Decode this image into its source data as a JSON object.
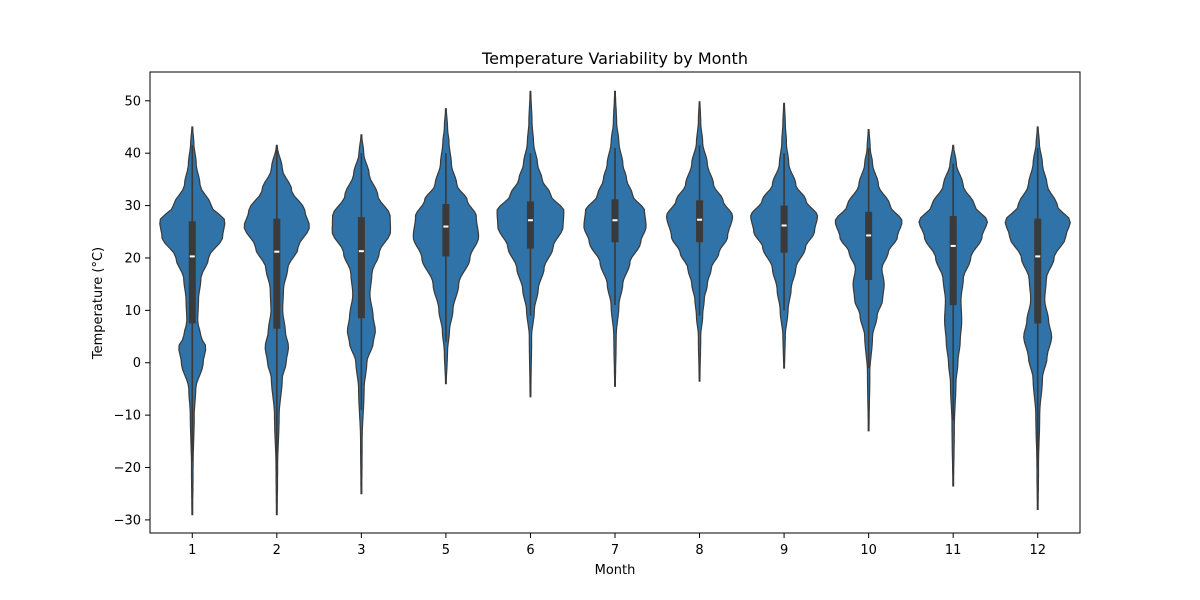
{
  "chart_data": {
    "type": "violin",
    "title": "Temperature Variability by Month",
    "xlabel": "Month",
    "ylabel": "Temperature (°C)",
    "ylim": [
      -32.5,
      55.5
    ],
    "yticks": [
      -30,
      -20,
      -10,
      0,
      10,
      20,
      30,
      40,
      50
    ],
    "grid": false,
    "legend": "none",
    "colors": {
      "violin_fill": "#2f73a8",
      "violin_edge": "#3a3a3a",
      "box": "#3a3a3a",
      "median": "#ffffff"
    },
    "categories": [
      "1",
      "2",
      "3",
      "5",
      "6",
      "7",
      "8",
      "9",
      "10",
      "11",
      "12"
    ],
    "series": [
      {
        "category": "1",
        "min": -29,
        "whisker_low": -19,
        "q1": 7.5,
        "median": 20.3,
        "q3": 27,
        "whisker_high": 41.5,
        "max": 45,
        "density": [
          [
            -29,
            0.01
          ],
          [
            -20,
            0.02
          ],
          [
            -10,
            0.05
          ],
          [
            -5,
            0.09
          ],
          [
            0,
            0.28
          ],
          [
            3,
            0.35
          ],
          [
            5,
            0.22
          ],
          [
            8,
            0.14
          ],
          [
            12,
            0.16
          ],
          [
            16,
            0.22
          ],
          [
            20,
            0.42
          ],
          [
            24,
            0.78
          ],
          [
            27,
            0.84
          ],
          [
            30,
            0.48
          ],
          [
            34,
            0.2
          ],
          [
            38,
            0.1
          ],
          [
            42,
            0.04
          ],
          [
            45,
            0.01
          ]
        ]
      },
      {
        "category": "2",
        "min": -29,
        "whisker_low": -22,
        "q1": 6.5,
        "median": 21.2,
        "q3": 27.5,
        "whisker_high": 41,
        "max": 41.5,
        "density": [
          [
            -29,
            0.01
          ],
          [
            -20,
            0.02
          ],
          [
            -10,
            0.06
          ],
          [
            -3,
            0.14
          ],
          [
            0,
            0.24
          ],
          [
            3,
            0.3
          ],
          [
            6,
            0.22
          ],
          [
            10,
            0.15
          ],
          [
            14,
            0.17
          ],
          [
            18,
            0.28
          ],
          [
            22,
            0.55
          ],
          [
            26,
            0.84
          ],
          [
            29,
            0.72
          ],
          [
            33,
            0.38
          ],
          [
            37,
            0.14
          ],
          [
            41.5,
            0.01
          ]
        ]
      },
      {
        "category": "3",
        "min": -25,
        "whisker_low": -9,
        "q1": 8.5,
        "median": 21.3,
        "q3": 27.8,
        "whisker_high": 40,
        "max": 43.5,
        "density": [
          [
            -25,
            0.01
          ],
          [
            -15,
            0.02
          ],
          [
            -5,
            0.07
          ],
          [
            0,
            0.14
          ],
          [
            4,
            0.31
          ],
          [
            6,
            0.36
          ],
          [
            9,
            0.3
          ],
          [
            13,
            0.22
          ],
          [
            17,
            0.27
          ],
          [
            21,
            0.46
          ],
          [
            25,
            0.75
          ],
          [
            28,
            0.74
          ],
          [
            32,
            0.42
          ],
          [
            36,
            0.2
          ],
          [
            40,
            0.06
          ],
          [
            43.5,
            0.01
          ]
        ]
      },
      {
        "category": "5",
        "min": -4,
        "whisker_low": 4,
        "q1": 20.3,
        "median": 26,
        "q3": 30.3,
        "whisker_high": 40,
        "max": 48.5,
        "density": [
          [
            -4,
            0.01
          ],
          [
            2,
            0.04
          ],
          [
            6,
            0.09
          ],
          [
            10,
            0.18
          ],
          [
            15,
            0.33
          ],
          [
            20,
            0.62
          ],
          [
            24,
            0.84
          ],
          [
            28,
            0.78
          ],
          [
            31,
            0.55
          ],
          [
            34,
            0.28
          ],
          [
            38,
            0.14
          ],
          [
            42,
            0.08
          ],
          [
            45,
            0.04
          ],
          [
            48.5,
            0.01
          ]
        ]
      },
      {
        "category": "6",
        "min": -6.5,
        "whisker_low": 9,
        "q1": 21.8,
        "median": 27.2,
        "q3": 30.8,
        "whisker_high": 40,
        "max": 51.8,
        "density": [
          [
            -6.5,
            0.01
          ],
          [
            5,
            0.03
          ],
          [
            10,
            0.1
          ],
          [
            14,
            0.2
          ],
          [
            18,
            0.35
          ],
          [
            22,
            0.58
          ],
          [
            26,
            0.84
          ],
          [
            29,
            0.86
          ],
          [
            32,
            0.52
          ],
          [
            35,
            0.3
          ],
          [
            38,
            0.18
          ],
          [
            42,
            0.08
          ],
          [
            46,
            0.04
          ],
          [
            51.8,
            0.01
          ]
        ]
      },
      {
        "category": "7",
        "min": -4.5,
        "whisker_low": 11,
        "q1": 23,
        "median": 27.2,
        "q3": 31.2,
        "whisker_high": 41,
        "max": 51.8,
        "density": [
          [
            -4.5,
            0.01
          ],
          [
            5,
            0.03
          ],
          [
            11,
            0.1
          ],
          [
            15,
            0.2
          ],
          [
            19,
            0.38
          ],
          [
            23,
            0.66
          ],
          [
            26,
            0.8
          ],
          [
            29,
            0.76
          ],
          [
            32,
            0.45
          ],
          [
            35,
            0.3
          ],
          [
            38,
            0.2
          ],
          [
            42,
            0.1
          ],
          [
            46,
            0.04
          ],
          [
            51.8,
            0.01
          ]
        ]
      },
      {
        "category": "8",
        "min": -3.5,
        "whisker_low": 9,
        "q1": 23,
        "median": 27.3,
        "q3": 31,
        "whisker_high": 41.5,
        "max": 49.8,
        "density": [
          [
            -3.5,
            0.01
          ],
          [
            5,
            0.03
          ],
          [
            9,
            0.08
          ],
          [
            12,
            0.12
          ],
          [
            15,
            0.2
          ],
          [
            18,
            0.3
          ],
          [
            21,
            0.5
          ],
          [
            24,
            0.72
          ],
          [
            28,
            0.85
          ],
          [
            31,
            0.6
          ],
          [
            34,
            0.36
          ],
          [
            38,
            0.2
          ],
          [
            42,
            0.08
          ],
          [
            46,
            0.03
          ],
          [
            49.8,
            0.01
          ]
        ]
      },
      {
        "category": "9",
        "min": -1,
        "whisker_low": 10,
        "q1": 21,
        "median": 26.2,
        "q3": 30,
        "whisker_high": 40,
        "max": 49.5,
        "density": [
          [
            -1,
            0.01
          ],
          [
            5,
            0.03
          ],
          [
            10,
            0.1
          ],
          [
            14,
            0.18
          ],
          [
            18,
            0.3
          ],
          [
            22,
            0.55
          ],
          [
            25,
            0.78
          ],
          [
            28,
            0.86
          ],
          [
            31,
            0.56
          ],
          [
            34,
            0.3
          ],
          [
            38,
            0.12
          ],
          [
            42,
            0.06
          ],
          [
            46,
            0.03
          ],
          [
            49.5,
            0.01
          ]
        ]
      },
      {
        "category": "10",
        "min": -13,
        "whisker_low": -1,
        "q1": 15.8,
        "median": 24.3,
        "q3": 28.8,
        "whisker_high": 41,
        "max": 44.5,
        "density": [
          [
            -13,
            0.01
          ],
          [
            -2,
            0.03
          ],
          [
            5,
            0.1
          ],
          [
            9,
            0.22
          ],
          [
            12,
            0.36
          ],
          [
            15,
            0.4
          ],
          [
            18,
            0.34
          ],
          [
            21,
            0.5
          ],
          [
            24,
            0.74
          ],
          [
            27,
            0.86
          ],
          [
            30,
            0.55
          ],
          [
            34,
            0.25
          ],
          [
            38,
            0.1
          ],
          [
            41,
            0.04
          ],
          [
            44.5,
            0.01
          ]
        ]
      },
      {
        "category": "11",
        "min": -23.5,
        "whisker_low": -11,
        "q1": 11,
        "median": 22.3,
        "q3": 28,
        "whisker_high": 38,
        "max": 41.5,
        "density": [
          [
            -23.5,
            0.01
          ],
          [
            -12,
            0.03
          ],
          [
            -4,
            0.07
          ],
          [
            0,
            0.12
          ],
          [
            4,
            0.18
          ],
          [
            8,
            0.22
          ],
          [
            12,
            0.2
          ],
          [
            16,
            0.26
          ],
          [
            20,
            0.45
          ],
          [
            24,
            0.74
          ],
          [
            27,
            0.88
          ],
          [
            30,
            0.55
          ],
          [
            34,
            0.25
          ],
          [
            38,
            0.08
          ],
          [
            41.5,
            0.01
          ]
        ]
      },
      {
        "category": "12",
        "min": -28,
        "whisker_low": -20,
        "q1": 7.5,
        "median": 20.3,
        "q3": 27.5,
        "whisker_high": 41,
        "max": 45,
        "density": [
          [
            -28,
            0.01
          ],
          [
            -20,
            0.02
          ],
          [
            -10,
            0.05
          ],
          [
            -3,
            0.12
          ],
          [
            1,
            0.24
          ],
          [
            5,
            0.36
          ],
          [
            8,
            0.28
          ],
          [
            12,
            0.18
          ],
          [
            16,
            0.22
          ],
          [
            20,
            0.42
          ],
          [
            24,
            0.72
          ],
          [
            27,
            0.84
          ],
          [
            30,
            0.5
          ],
          [
            34,
            0.24
          ],
          [
            38,
            0.12
          ],
          [
            42,
            0.04
          ],
          [
            45,
            0.01
          ]
        ]
      }
    ]
  }
}
